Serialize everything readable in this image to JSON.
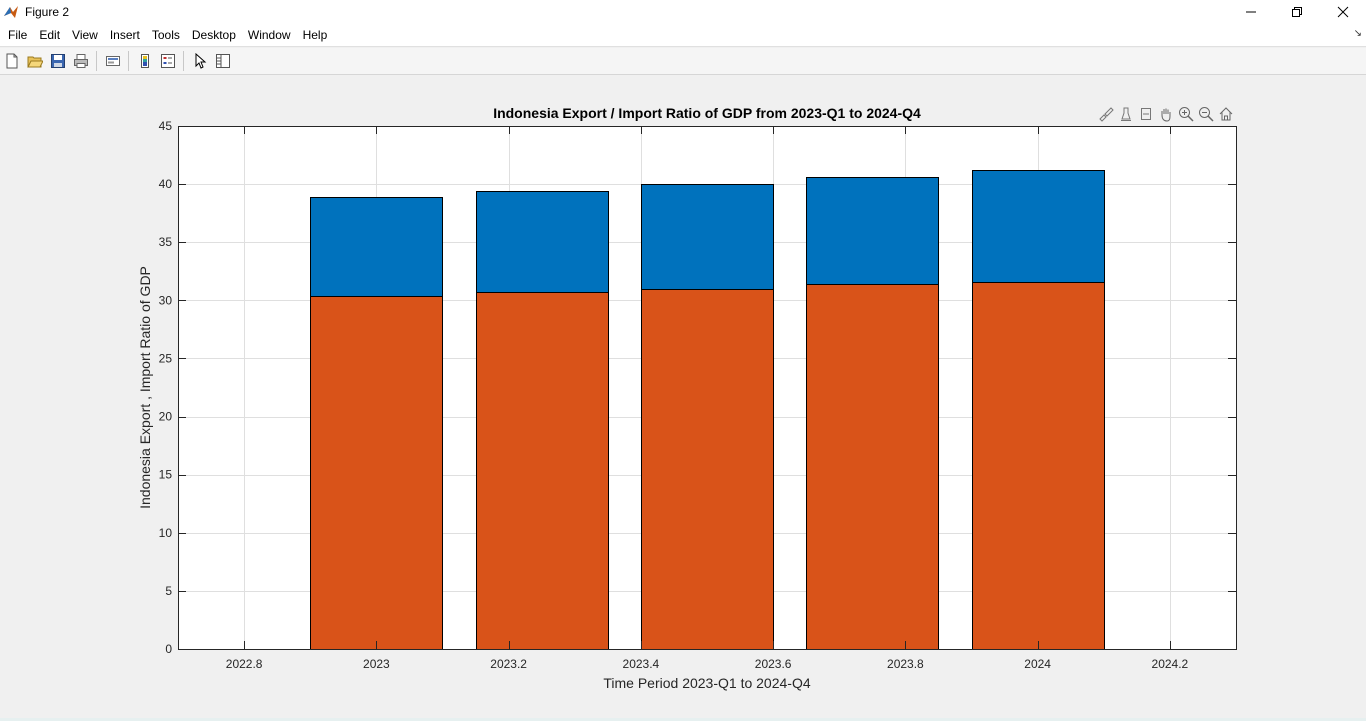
{
  "window": {
    "title": "Figure 2"
  },
  "menu": {
    "items": [
      "File",
      "Edit",
      "View",
      "Insert",
      "Tools",
      "Desktop",
      "Window",
      "Help"
    ]
  },
  "toolbar": {
    "icons": [
      "new-figure-icon",
      "open-file-icon",
      "save-icon",
      "print-icon",
      "link-plot-icon",
      "colorbar-icon",
      "legend-icon",
      "edit-plot-icon",
      "property-inspector-icon"
    ]
  },
  "axes_toolbar": {
    "icons": [
      "brush-icon",
      "data-tips-icon",
      "restore-view-icon",
      "pan-icon",
      "zoom-in-icon",
      "zoom-out-icon",
      "home-icon"
    ]
  },
  "colors": {
    "bottom_series": "#D95319",
    "top_series": "#0072BD",
    "axes_background": "#ffffff",
    "figure_background": "#f0f0f0"
  },
  "chart_data": {
    "type": "bar",
    "stacked": true,
    "title": "Indonesia Export / Import Ratio of GDP from 2023-Q1 to 2024-Q4",
    "xlabel": "Time Period 2023-Q1 to 2024-Q4",
    "ylabel": "Indonesia Export , Import Ratio of GDP",
    "x": [
      2023.0,
      2023.25,
      2023.5,
      2023.75,
      2024.0
    ],
    "series": [
      {
        "color": "#D95319",
        "values": [
          30.4,
          30.7,
          31.0,
          31.4,
          31.6
        ]
      },
      {
        "color": "#0072BD",
        "values": [
          8.5,
          8.7,
          9.0,
          9.2,
          9.6
        ]
      }
    ],
    "totals": [
      38.9,
      39.4,
      40.0,
      40.6,
      41.2
    ],
    "xlim": [
      2022.7,
      2024.3
    ],
    "ylim": [
      0,
      45
    ],
    "xticks": [
      2022.8,
      2023,
      2023.2,
      2023.4,
      2023.6,
      2023.8,
      2024,
      2024.2
    ],
    "xtick_labels": [
      "2022.8",
      "2023",
      "2023.2",
      "2023.4",
      "2023.6",
      "2023.8",
      "2024",
      "2024.2"
    ],
    "yticks": [
      0,
      5,
      10,
      15,
      20,
      25,
      30,
      35,
      40,
      45
    ],
    "ytick_labels": [
      "0",
      "5",
      "10",
      "15",
      "20",
      "25",
      "30",
      "35",
      "40",
      "45"
    ],
    "bar_width": 0.2,
    "grid": true,
    "legend": "none"
  }
}
